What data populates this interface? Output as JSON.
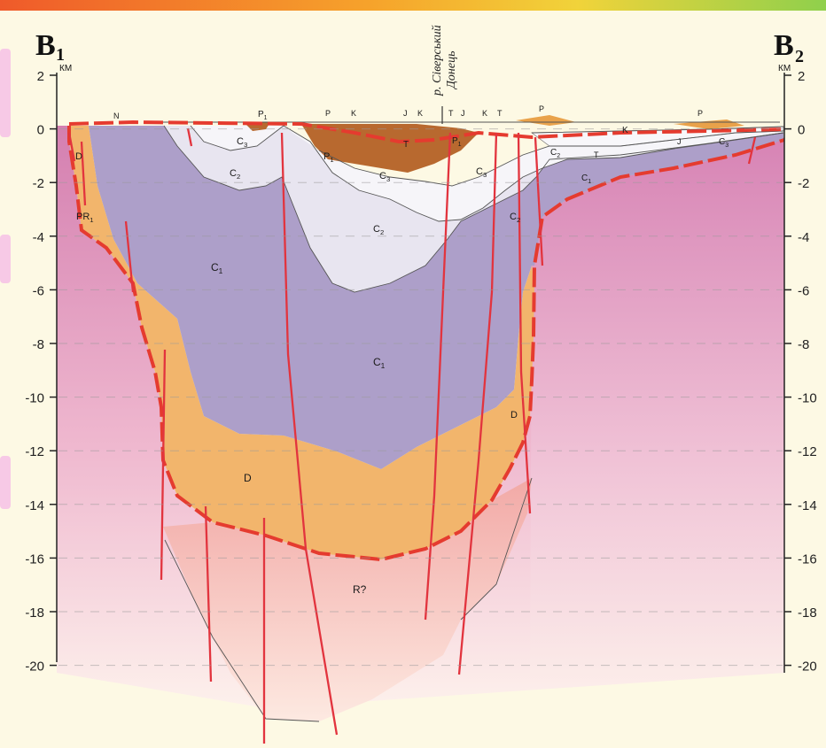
{
  "section": {
    "left_label_main": "B",
    "left_label_sub": "1",
    "right_label_main": "B",
    "right_label_sub": "2",
    "unit": "КМ",
    "river_line1": "р. Сіверський",
    "river_line2": "Донець"
  },
  "depth_ticks": [
    "2",
    "0",
    "-2",
    "-4",
    "-6",
    "-8",
    "-10",
    "-12",
    "-14",
    "-16",
    "-18",
    "-20"
  ],
  "strata_labels": [
    {
      "key": "n",
      "text": "N"
    },
    {
      "key": "p1_top",
      "text": "P",
      "sub": "1"
    },
    {
      "key": "p_top1",
      "text": "P"
    },
    {
      "key": "k_top1",
      "text": "K"
    },
    {
      "key": "j_top1",
      "text": "J"
    },
    {
      "key": "k_top2",
      "text": "K"
    },
    {
      "key": "t_top",
      "text": "T"
    },
    {
      "key": "j_top2",
      "text": "J"
    },
    {
      "key": "k_top3",
      "text": "K"
    },
    {
      "key": "t_top2",
      "text": "T"
    },
    {
      "key": "p_top2",
      "text": "P"
    },
    {
      "key": "k_right",
      "text": "K"
    },
    {
      "key": "p_right",
      "text": "P"
    },
    {
      "key": "j_right",
      "text": "J"
    },
    {
      "key": "c3_right",
      "text": "C",
      "sub": "3"
    },
    {
      "key": "c2_right",
      "text": "C",
      "sub": "2"
    },
    {
      "key": "t_right",
      "text": "T"
    },
    {
      "key": "c1_right",
      "text": "C",
      "sub": "1"
    },
    {
      "key": "c3_left",
      "text": "C",
      "sub": "3"
    },
    {
      "key": "c2_left",
      "text": "C",
      "sub": "2"
    },
    {
      "key": "t_mid",
      "text": "T"
    },
    {
      "key": "p1_mid1",
      "text": "P",
      "sub": "1"
    },
    {
      "key": "p1_mid2",
      "text": "P",
      "sub": "1"
    },
    {
      "key": "c3_mid",
      "text": "C",
      "sub": "3"
    },
    {
      "key": "c3_mid2",
      "text": "C",
      "sub": "3"
    },
    {
      "key": "c2_mid",
      "text": "C",
      "sub": "2"
    },
    {
      "key": "c2_mid2",
      "text": "C",
      "sub": "2"
    },
    {
      "key": "c1_left",
      "text": "C",
      "sub": "1"
    },
    {
      "key": "c1_center",
      "text": "C",
      "sub": "1"
    },
    {
      "key": "d_left",
      "text": "D"
    },
    {
      "key": "pr1",
      "text": "PR",
      "sub": "1"
    },
    {
      "key": "d_right",
      "text": "D"
    },
    {
      "key": "d_bottom",
      "text": "D"
    },
    {
      "key": "r",
      "text": "R?"
    }
  ],
  "colors": {
    "background": "#fdf9e4",
    "top_stripe_start": "#ef5a2a",
    "top_stripe_end": "#9bd34a",
    "basement_top": "#d98bb6",
    "basement_bottom": "#fdf4ee",
    "devonian": "#f2b56c",
    "c1": "#ad9fc9",
    "c2": "#e9e6f1",
    "c3": "#f5f4f8",
    "permian": "#b8692f",
    "boundary": "#e53b2f",
    "fault": "#e2343e"
  }
}
